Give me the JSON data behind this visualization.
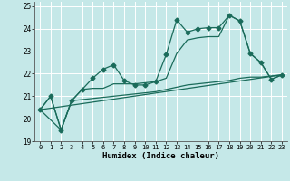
{
  "xlabel": "Humidex (Indice chaleur)",
  "xlim": [
    -0.5,
    23.5
  ],
  "ylim": [
    19,
    25.2
  ],
  "yticks": [
    19,
    20,
    21,
    22,
    23,
    24,
    25
  ],
  "xticks": [
    0,
    1,
    2,
    3,
    4,
    5,
    6,
    7,
    8,
    9,
    10,
    11,
    12,
    13,
    14,
    15,
    16,
    17,
    18,
    19,
    20,
    21,
    22,
    23
  ],
  "bg_color": "#c5e8e8",
  "grid_color": "#ffffff",
  "line_color": "#1a6b5a",
  "line1_x": [
    0,
    1,
    2,
    3,
    4,
    5,
    6,
    7,
    8,
    9,
    10,
    11,
    12,
    13,
    14,
    15,
    16,
    17,
    18,
    19,
    20,
    21,
    22,
    23
  ],
  "line1_y": [
    20.4,
    21.0,
    19.5,
    20.8,
    21.3,
    21.8,
    22.2,
    22.4,
    21.7,
    21.5,
    21.5,
    21.65,
    22.85,
    24.4,
    23.85,
    24.0,
    24.05,
    24.05,
    24.6,
    24.35,
    22.9,
    22.5,
    21.75,
    21.95
  ],
  "line2_x": [
    0,
    1,
    2,
    3,
    4,
    5,
    6,
    7,
    8,
    9,
    10,
    11,
    12,
    13,
    14,
    15,
    16,
    17,
    18,
    19,
    20,
    21,
    22,
    23
  ],
  "line2_y": [
    20.4,
    21.0,
    19.5,
    20.8,
    21.3,
    21.35,
    21.35,
    21.55,
    21.55,
    21.55,
    21.6,
    21.65,
    21.8,
    22.9,
    23.5,
    23.6,
    23.65,
    23.65,
    24.6,
    24.35,
    22.9,
    22.5,
    21.75,
    21.95
  ],
  "line3_x": [
    0,
    2,
    3,
    4,
    5,
    6,
    7,
    8,
    9,
    10,
    11,
    12,
    13,
    14,
    15,
    16,
    17,
    18,
    19,
    20,
    21,
    22,
    23
  ],
  "line3_y": [
    20.4,
    19.5,
    20.8,
    20.85,
    20.9,
    20.95,
    21.0,
    21.05,
    21.1,
    21.15,
    21.2,
    21.3,
    21.4,
    21.5,
    21.55,
    21.6,
    21.65,
    21.7,
    21.8,
    21.85,
    21.85,
    21.9,
    21.95
  ],
  "line4_x": [
    0,
    23
  ],
  "line4_y": [
    20.4,
    21.95
  ]
}
